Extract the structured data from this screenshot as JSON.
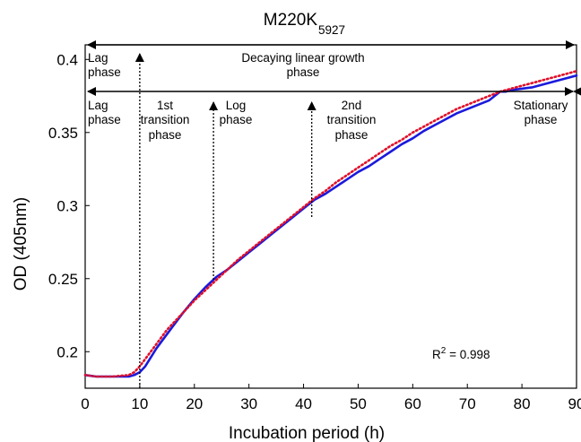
{
  "chart_data": {
    "type": "line",
    "title_main": "M220K",
    "title_sub": "5927",
    "xlabel": "Incubation period (h)",
    "ylabel": "OD (405nm)",
    "xlim": [
      0,
      90
    ],
    "ylim": [
      0.175,
      0.41
    ],
    "xticks": [
      0,
      10,
      20,
      30,
      40,
      50,
      60,
      70,
      80,
      90
    ],
    "yticks": [
      0.2,
      0.25,
      0.3,
      0.35,
      0.4
    ],
    "xtick_labels": [
      "0",
      "10",
      "20",
      "30",
      "40",
      "50",
      "60",
      "70",
      "80",
      "90"
    ],
    "ytick_labels": [
      "0.2",
      "0.25",
      "0.3",
      "0.35",
      "0.4"
    ],
    "grid": false,
    "series": [
      {
        "style": "solid",
        "color": "#1a1adc",
        "x": [
          0,
          2,
          5,
          8,
          9,
          10,
          11,
          12,
          13,
          14,
          15,
          16,
          17,
          18,
          20,
          22,
          24,
          26,
          28,
          30,
          32,
          34,
          36,
          38,
          40,
          42,
          44,
          46,
          48,
          50,
          52,
          54,
          56,
          58,
          60,
          62,
          64,
          66,
          68,
          70,
          72,
          74,
          75,
          76,
          77,
          78,
          80,
          82,
          84,
          86,
          88,
          90
        ],
        "y": [
          0.184,
          0.183,
          0.183,
          0.183,
          0.184,
          0.186,
          0.19,
          0.196,
          0.202,
          0.207,
          0.212,
          0.217,
          0.222,
          0.227,
          0.236,
          0.244,
          0.251,
          0.256,
          0.262,
          0.268,
          0.274,
          0.28,
          0.286,
          0.292,
          0.298,
          0.304,
          0.308,
          0.313,
          0.318,
          0.323,
          0.327,
          0.332,
          0.337,
          0.342,
          0.346,
          0.351,
          0.355,
          0.359,
          0.363,
          0.366,
          0.369,
          0.372,
          0.375,
          0.378,
          0.378,
          0.379,
          0.38,
          0.381,
          0.383,
          0.385,
          0.387,
          0.389
        ]
      },
      {
        "style": "dotted",
        "color": "#e0102a",
        "x": [
          0,
          2,
          5,
          8,
          9,
          10,
          11,
          12,
          13,
          14,
          15,
          16,
          17,
          18,
          20,
          22,
          24,
          26,
          28,
          30,
          32,
          34,
          36,
          38,
          40,
          42,
          44,
          46,
          48,
          50,
          52,
          54,
          56,
          58,
          60,
          62,
          64,
          66,
          68,
          70,
          72,
          74,
          76,
          78,
          80,
          82,
          84,
          86,
          88,
          90
        ],
        "y": [
          0.184,
          0.183,
          0.183,
          0.184,
          0.186,
          0.19,
          0.195,
          0.2,
          0.205,
          0.21,
          0.215,
          0.219,
          0.223,
          0.227,
          0.235,
          0.242,
          0.249,
          0.256,
          0.263,
          0.269,
          0.275,
          0.281,
          0.287,
          0.293,
          0.299,
          0.305,
          0.31,
          0.316,
          0.321,
          0.326,
          0.331,
          0.336,
          0.341,
          0.345,
          0.35,
          0.354,
          0.358,
          0.362,
          0.366,
          0.369,
          0.372,
          0.375,
          0.378,
          0.38,
          0.382,
          0.384,
          0.386,
          0.388,
          0.39,
          0.392
        ]
      }
    ],
    "annotations": {
      "r2_label": "R",
      "r2_sup": "2",
      "r2_value": " = 0.998",
      "top_row": {
        "lag_line1": "Lag",
        "lag_line2": "phase",
        "decaying_line1": "Decaying linear growth",
        "decaying_line2": "phase"
      },
      "bottom_row": {
        "lag_line1": "Lag",
        "lag_line2": "phase",
        "first_line1": "1st",
        "first_line2": "transition",
        "first_line3": "phase",
        "log_line1": "Log",
        "log_line2": "phase",
        "second_line1": "2nd",
        "second_line2": "transition",
        "second_line3": "phase",
        "stationary_line1": "Stationary",
        "stationary_line2": "phase"
      },
      "phase_boundaries_x": [
        10,
        23.5,
        41.5
      ]
    }
  }
}
